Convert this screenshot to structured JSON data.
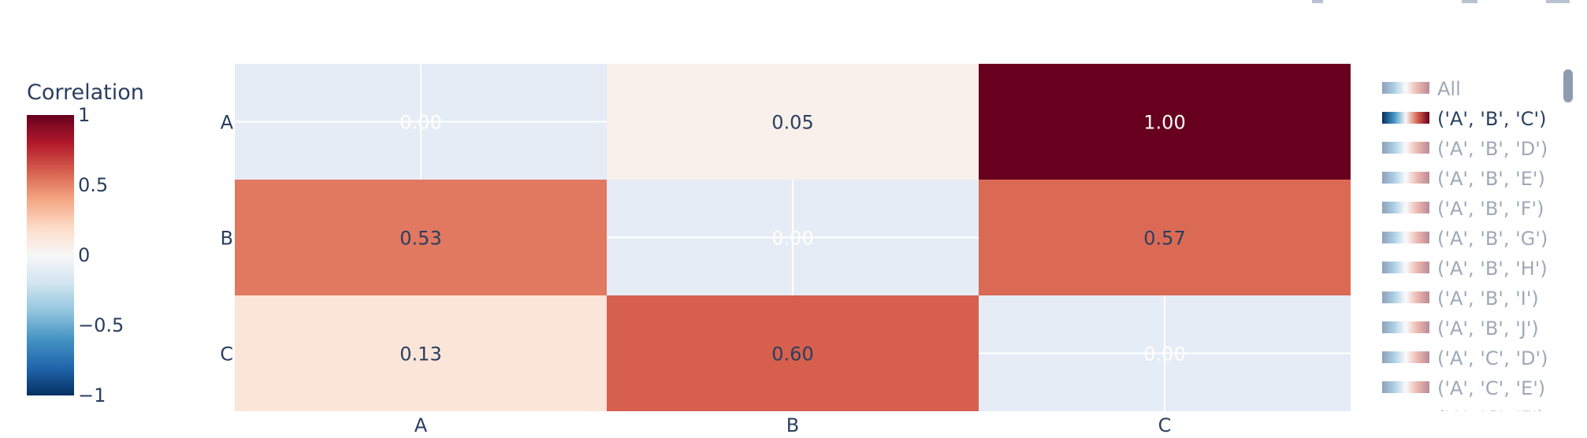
{
  "chart_data": {
    "type": "heatmap",
    "x_categories": [
      "A",
      "B",
      "C"
    ],
    "y_categories": [
      "A",
      "B",
      "C"
    ],
    "values": [
      [
        0.0,
        0.05,
        1.0
      ],
      [
        0.53,
        0.0,
        0.57
      ],
      [
        0.13,
        0.6,
        0.0
      ]
    ],
    "cell_labels": [
      [
        "0.00",
        "0.05",
        "1.00"
      ],
      [
        "0.53",
        "0.00",
        "0.57"
      ],
      [
        "0.13",
        "0.60",
        "0.00"
      ]
    ],
    "masked_cells": [
      [
        0,
        0
      ],
      [
        1,
        1
      ],
      [
        2,
        2
      ]
    ],
    "colorbar": {
      "title": "Correlation",
      "range": [
        -1,
        1
      ],
      "ticks": [
        1,
        0.5,
        0,
        -0.5,
        -1
      ],
      "tick_labels": [
        "1",
        "0.5",
        "0",
        "−0.5",
        "−1"
      ],
      "colorscale": "RdBu reversed"
    },
    "legend": {
      "placement": "right",
      "items": [
        {
          "label": "All",
          "active": false
        },
        {
          "label": "('A', 'B', 'C')",
          "active": true
        },
        {
          "label": "('A', 'B', 'D')",
          "active": false
        },
        {
          "label": "('A', 'B', 'E')",
          "active": false
        },
        {
          "label": "('A', 'B', 'F')",
          "active": false
        },
        {
          "label": "('A', 'B', 'G')",
          "active": false
        },
        {
          "label": "('A', 'B', 'H')",
          "active": false
        },
        {
          "label": "('A', 'B', 'I')",
          "active": false
        },
        {
          "label": "('A', 'B', 'J')",
          "active": false
        },
        {
          "label": "('A', 'C', 'D')",
          "active": false
        },
        {
          "label": "('A', 'C', 'E')",
          "active": false
        },
        {
          "label": "('A', 'C', 'F')",
          "active": false
        }
      ]
    },
    "grid": true
  },
  "colors": {
    "masked_cell": "#e5ecf6",
    "grid": "#ffffff",
    "text": "#2a3f5f",
    "legend_inactive_text": "#9aa4b4",
    "scrollbar": "#8e9bb0"
  }
}
